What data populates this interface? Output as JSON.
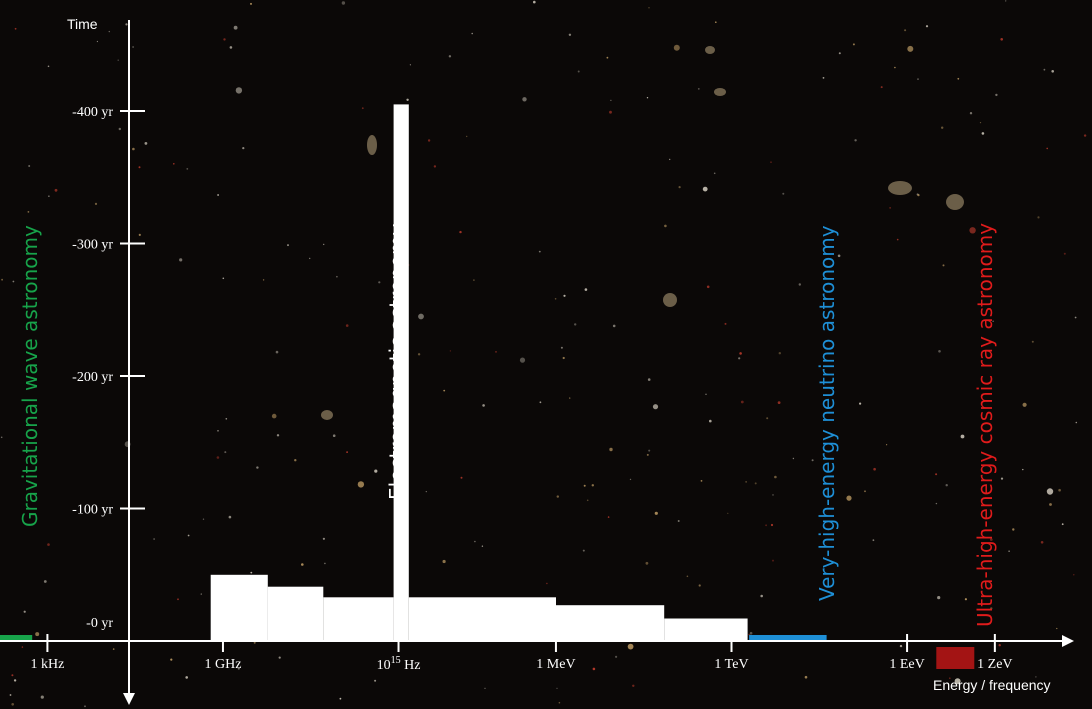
{
  "chart_data": {
    "type": "bar",
    "y_axis": {
      "title": "Time",
      "ticks": [
        {
          "value": 0,
          "label": "-0 yr"
        },
        {
          "value": 100,
          "label": "-100 yr"
        },
        {
          "value": 200,
          "label": "-200 yr"
        },
        {
          "value": 300,
          "label": "-300 yr"
        },
        {
          "value": 400,
          "label": "-400 yr"
        }
      ],
      "ylim": [
        0,
        460
      ]
    },
    "x_axis": {
      "title": "Energy / frequency",
      "scale": "log (energy in eV)",
      "xlim": [
        -13.0,
        23.5
      ],
      "ticks": [
        {
          "value": -11.38,
          "label": "1 kHz"
        },
        {
          "value": -5.38,
          "label": "1 GHz"
        },
        {
          "value": 0.62,
          "label": "10",
          "sup": "15",
          "suffix": " Hz"
        },
        {
          "value": 6.0,
          "label": "1 MeV"
        },
        {
          "value": 12.0,
          "label": "1 TeV"
        },
        {
          "value": 18.0,
          "label": "1 EeV"
        },
        {
          "value": 21.0,
          "label": "1 ZeV"
        }
      ]
    },
    "series": [
      {
        "name": "Electromagnetic astronomy",
        "color": "#ffffff",
        "bars": [
          {
            "x0": -5.8,
            "x1": -3.85,
            "value": 50
          },
          {
            "x0": -3.85,
            "x1": -1.95,
            "value": 41
          },
          {
            "x0": -1.95,
            "x1": 0.45,
            "value": 33
          },
          {
            "x0": 0.45,
            "x1": 0.97,
            "value": 405
          },
          {
            "x0": 0.97,
            "x1": 6.0,
            "value": 33
          },
          {
            "x0": 6.0,
            "x1": 9.7,
            "value": 27
          },
          {
            "x0": 9.7,
            "x1": 12.55,
            "value": 17
          }
        ]
      },
      {
        "name": "Gravitational wave astronomy",
        "color": "#17a34a",
        "bars": [
          {
            "x0": -13.0,
            "x1": -11.9,
            "value": 3
          }
        ]
      },
      {
        "name": "Very-high-energy neutrino astronomy",
        "color": "#1e8fd6",
        "bars": [
          {
            "x0": 12.6,
            "x1": 15.25,
            "value": 3
          }
        ]
      },
      {
        "name": "Ultra-high-energy cosmic ray astronomy",
        "color": "#a31414",
        "bars": [
          {
            "x0": 19.0,
            "x1": 20.3,
            "value": 0,
            "below_axis": true
          }
        ]
      }
    ]
  },
  "labels": {
    "gw_part1": "Gravitational",
    "gw_part2": " wave astronomy",
    "em": "Electromagnetic astronomy",
    "nu_part1": "Very-high-energy",
    "nu_part2": " neutrino astronomy",
    "cr_part1": "Ultra-high-energy",
    "cr_part2": " cosmic ray astronomy"
  },
  "colors": {
    "background": "#0b0807",
    "axis": "#ffffff",
    "gw": "#17a34a",
    "em": "#ffffff",
    "nu": "#1e8fd6",
    "cr": "#e01b1b"
  }
}
